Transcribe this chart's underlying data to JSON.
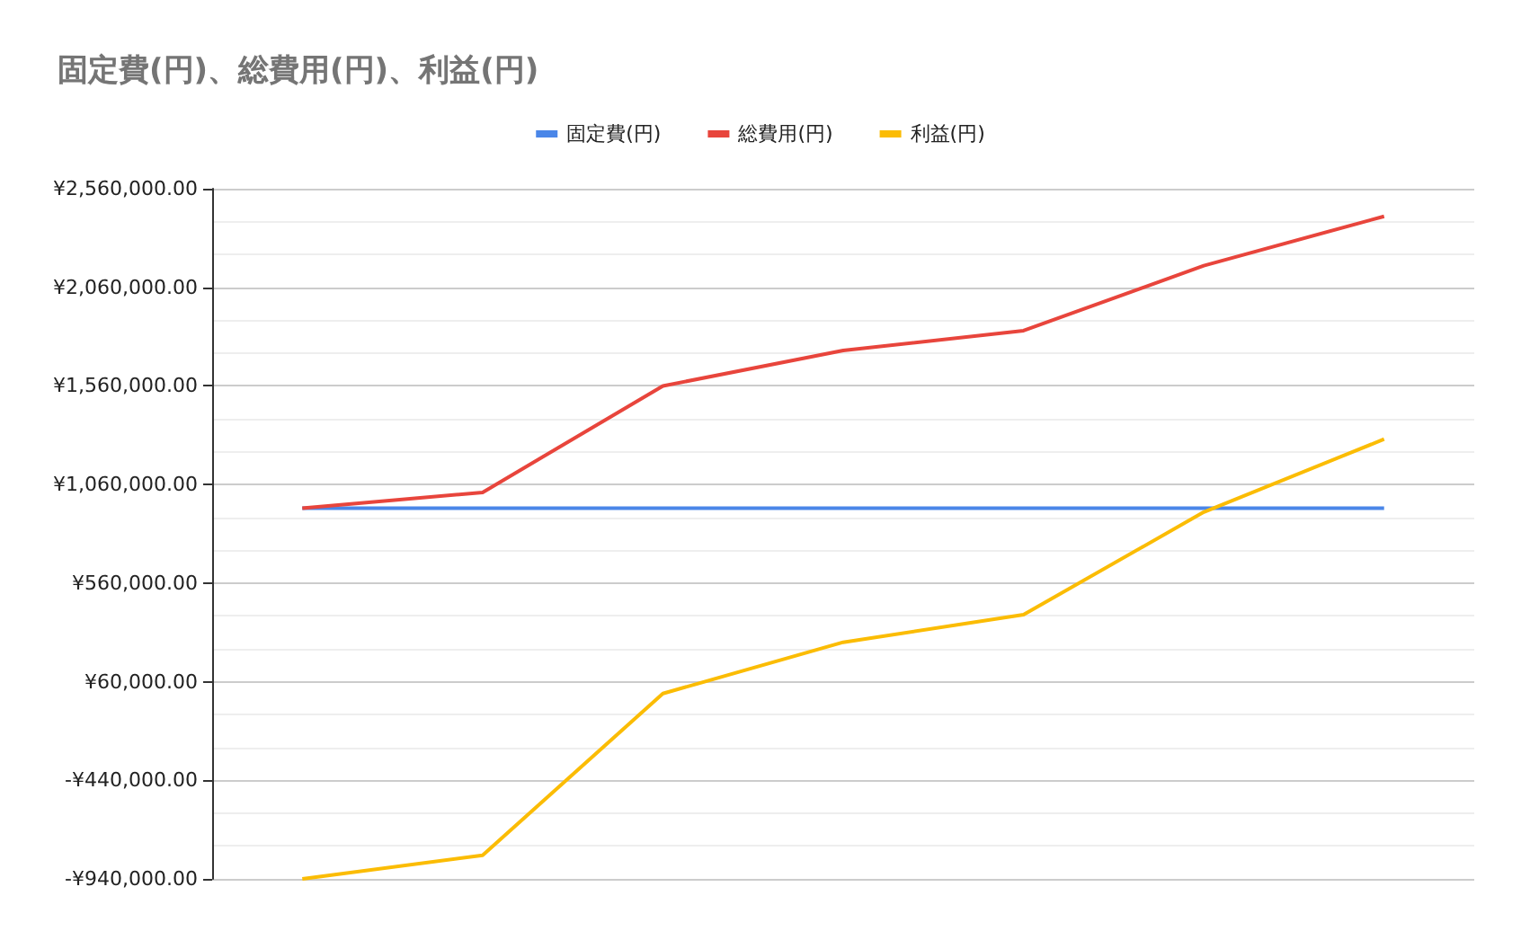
{
  "chart_data": {
    "type": "line",
    "title": "固定費(円)、総費用(円)、利益(円)",
    "categories": [
      null,
      null,
      null,
      null,
      null,
      null,
      null
    ],
    "series": [
      {
        "name": "固定費(円)",
        "color": "#4a86e8",
        "values": [
          940000,
          940000,
          940000,
          940000,
          940000,
          940000,
          940000
        ]
      },
      {
        "name": "総費用(円)",
        "color": "#e8453c",
        "values": [
          940000,
          1020000,
          1560000,
          1740000,
          1840000,
          2170000,
          2420000
        ]
      },
      {
        "name": "利益(円)",
        "color": "#fbbc04",
        "values": [
          -940000,
          -820000,
          0,
          260000,
          400000,
          920000,
          1290000
        ]
      }
    ],
    "ylim": [
      -940000,
      2560000
    ],
    "yticks": [
      {
        "value": -940000,
        "label": "-¥940,000.00"
      },
      {
        "value": -440000,
        "label": "-¥440,000.00"
      },
      {
        "value": 60000,
        "label": "¥60,000.00"
      },
      {
        "value": 560000,
        "label": "¥560,000.00"
      },
      {
        "value": 1060000,
        "label": "¥1,060,000.00"
      },
      {
        "value": 1560000,
        "label": "¥1,560,000.00"
      },
      {
        "value": 2060000,
        "label": "¥2,060,000.00"
      },
      {
        "value": 2560000,
        "label": "¥2,560,000.00"
      }
    ],
    "grid": "y",
    "legend": "top",
    "marker": "none",
    "line_style": "solid"
  }
}
